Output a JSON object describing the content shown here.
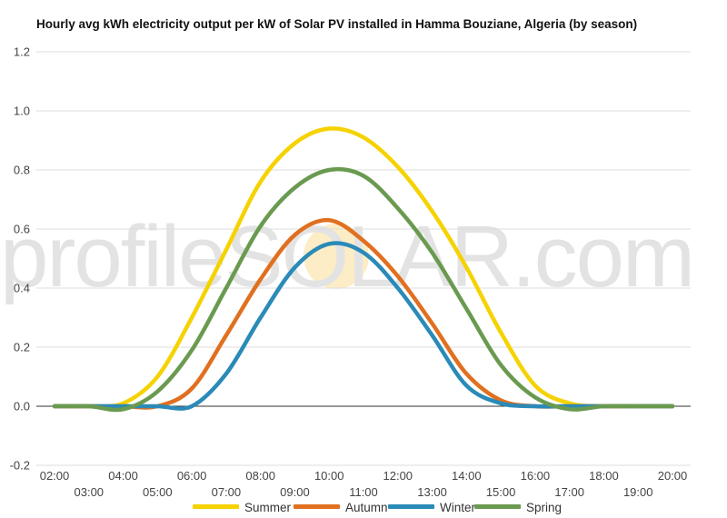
{
  "chart_data": {
    "type": "line",
    "title": "Hourly avg kWh electricity output per kW of Solar PV installed in Hamma Bouziane, Algeria (by season)",
    "watermark": "profileSOLAR.com",
    "xlabel": "",
    "ylabel": "",
    "ylim": [
      -0.2,
      1.2
    ],
    "yticks": [
      -0.2,
      0.0,
      0.2,
      0.4,
      0.6,
      0.8,
      1.0,
      1.2
    ],
    "ytick_labels": [
      "-0.2",
      "0.0",
      "0.2",
      "0.4",
      "0.6",
      "0.8",
      "1.0",
      "1.2"
    ],
    "x": [
      "02:00",
      "03:00",
      "04:00",
      "05:00",
      "06:00",
      "07:00",
      "08:00",
      "09:00",
      "10:00",
      "11:00",
      "12:00",
      "13:00",
      "14:00",
      "15:00",
      "16:00",
      "17:00",
      "18:00",
      "19:00",
      "20:00"
    ],
    "grid": true,
    "legend_position": "bottom",
    "series": [
      {
        "name": "Summer",
        "color": "#f5d200",
        "values": [
          0,
          0,
          0.01,
          0.1,
          0.3,
          0.53,
          0.76,
          0.89,
          0.94,
          0.91,
          0.81,
          0.66,
          0.47,
          0.25,
          0.07,
          0.01,
          0,
          0,
          0
        ]
      },
      {
        "name": "Autumn",
        "color": "#e07020",
        "values": [
          0,
          0,
          0,
          0,
          0.06,
          0.24,
          0.43,
          0.58,
          0.63,
          0.56,
          0.44,
          0.28,
          0.11,
          0.02,
          0,
          0,
          0,
          0,
          0
        ]
      },
      {
        "name": "Winter",
        "color": "#2a8ab8",
        "values": [
          0,
          0,
          0,
          0,
          0,
          0.11,
          0.3,
          0.47,
          0.55,
          0.52,
          0.4,
          0.24,
          0.07,
          0.01,
          0,
          0,
          0,
          0,
          0
        ]
      },
      {
        "name": "Spring",
        "color": "#6a9a50",
        "values": [
          0,
          0,
          -0.01,
          0.05,
          0.19,
          0.4,
          0.61,
          0.74,
          0.8,
          0.78,
          0.67,
          0.52,
          0.33,
          0.14,
          0.03,
          -0.01,
          0,
          0,
          0
        ]
      }
    ]
  }
}
